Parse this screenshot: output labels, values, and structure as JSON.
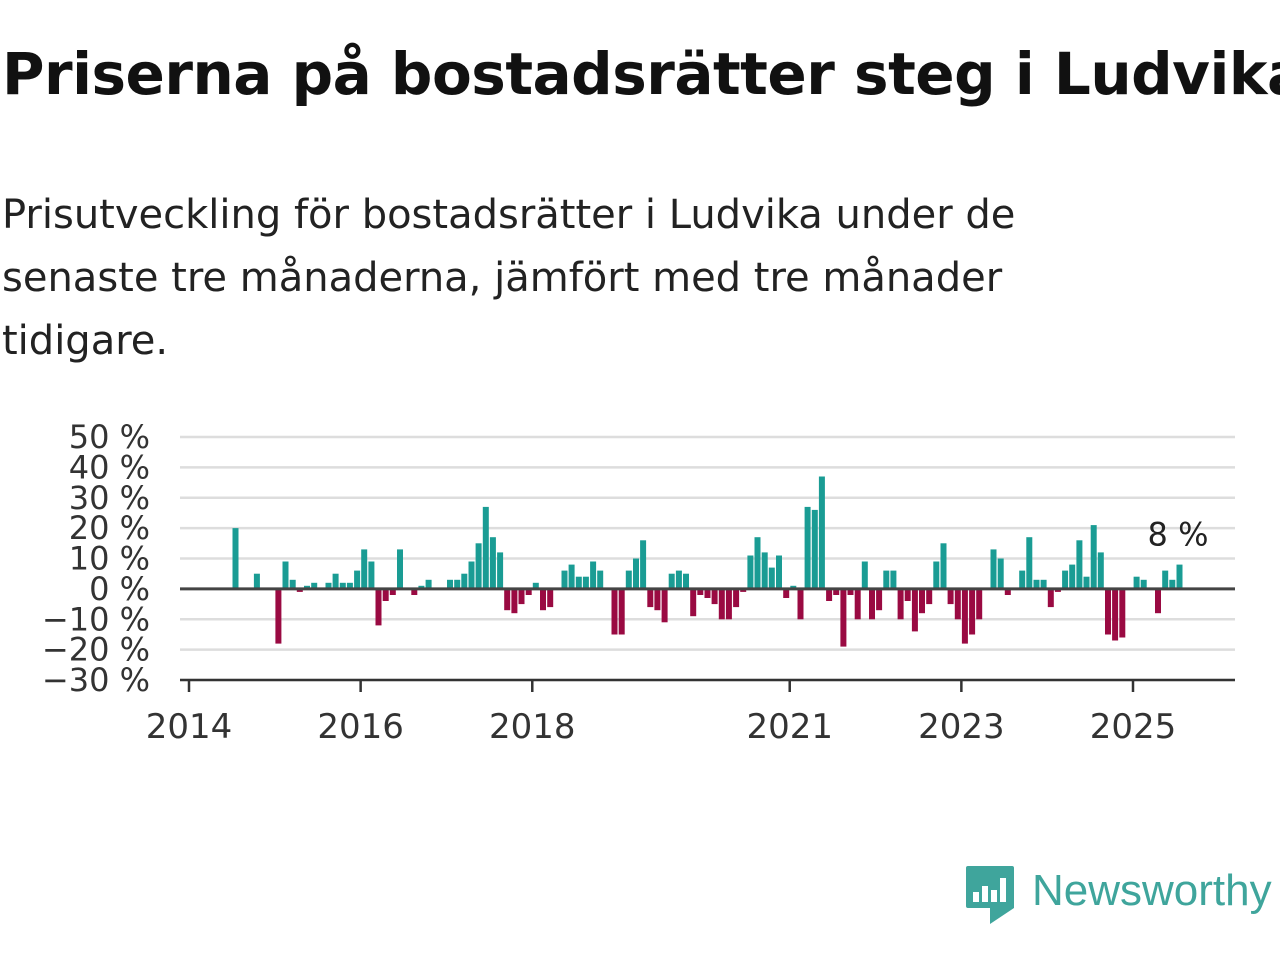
{
  "title": "Priserna på bostadsrätter steg i Ludvika",
  "subtitle": "Prisutveckling för bostadsrätter i Ludvika under de senaste tre månaderna, jämfört med tre månader tidigare.",
  "brand": {
    "name": "Newsworthy",
    "color": "#3fa59c",
    "icon": "newsworthy-logo-icon"
  },
  "colors": {
    "positive": "#1a9c94",
    "negative": "#9a0a42",
    "grid": "#dddddd",
    "axis": "#333333"
  },
  "chart_data": {
    "type": "bar",
    "title": "Priserna på bostadsrätter steg i Ludvika",
    "xlabel": "",
    "ylabel": "",
    "ylim": [
      -30,
      50
    ],
    "yticks": [
      50,
      40,
      30,
      20,
      10,
      0,
      -10,
      -20,
      -30
    ],
    "ytick_labels": [
      "50 %",
      "40 %",
      "30 %",
      "20 %",
      "10 %",
      "0 %",
      "−10 %",
      "−20 %",
      "−30 %"
    ],
    "xticks": [
      {
        "year": 2014.0,
        "label": "2014"
      },
      {
        "year": 2016.0,
        "label": "2016"
      },
      {
        "year": 2018.0,
        "label": "2018"
      },
      {
        "year": 2021.0,
        "label": "2021"
      },
      {
        "year": 2023.0,
        "label": "2023"
      },
      {
        "year": 2025.0,
        "label": "2025"
      }
    ],
    "grid": true,
    "last_value_label": "8 %",
    "series": [
      {
        "points": [
          [
            "2014-07",
            20
          ],
          [
            "2014-10",
            5
          ],
          [
            "2015-01",
            -18
          ],
          [
            "2015-02",
            9
          ],
          [
            "2015-03",
            3
          ],
          [
            "2015-04",
            -1
          ],
          [
            "2015-05",
            1
          ],
          [
            "2015-06",
            2
          ],
          [
            "2015-08",
            2
          ],
          [
            "2015-09",
            5
          ],
          [
            "2015-10",
            2
          ],
          [
            "2015-11",
            2
          ],
          [
            "2015-12",
            6
          ],
          [
            "2016-01",
            13
          ],
          [
            "2016-02",
            9
          ],
          [
            "2016-03",
            -12
          ],
          [
            "2016-04",
            -4
          ],
          [
            "2016-05",
            -2
          ],
          [
            "2016-06",
            13
          ],
          [
            "2016-08",
            -2
          ],
          [
            "2016-09",
            1
          ],
          [
            "2016-10",
            3
          ],
          [
            "2017-01",
            3
          ],
          [
            "2017-02",
            3
          ],
          [
            "2017-03",
            5
          ],
          [
            "2017-04",
            9
          ],
          [
            "2017-05",
            15
          ],
          [
            "2017-06",
            27
          ],
          [
            "2017-07",
            17
          ],
          [
            "2017-08",
            12
          ],
          [
            "2017-09",
            -7
          ],
          [
            "2017-10",
            -8
          ],
          [
            "2017-11",
            -5
          ],
          [
            "2017-12",
            -2
          ],
          [
            "2018-01",
            2
          ],
          [
            "2018-02",
            -7
          ],
          [
            "2018-03",
            -6
          ],
          [
            "2018-05",
            6
          ],
          [
            "2018-06",
            8
          ],
          [
            "2018-07",
            4
          ],
          [
            "2018-08",
            4
          ],
          [
            "2018-09",
            9
          ],
          [
            "2018-10",
            6
          ],
          [
            "2018-12",
            -15
          ],
          [
            "2019-01",
            -15
          ],
          [
            "2019-02",
            6
          ],
          [
            "2019-03",
            10
          ],
          [
            "2019-04",
            16
          ],
          [
            "2019-05",
            -6
          ],
          [
            "2019-06",
            -7
          ],
          [
            "2019-07",
            -11
          ],
          [
            "2019-08",
            5
          ],
          [
            "2019-09",
            6
          ],
          [
            "2019-10",
            5
          ],
          [
            "2019-11",
            -9
          ],
          [
            "2019-12",
            -2
          ],
          [
            "2020-01",
            -3
          ],
          [
            "2020-02",
            -5
          ],
          [
            "2020-03",
            -10
          ],
          [
            "2020-04",
            -10
          ],
          [
            "2020-05",
            -6
          ],
          [
            "2020-06",
            -1
          ],
          [
            "2020-07",
            11
          ],
          [
            "2020-08",
            17
          ],
          [
            "2020-09",
            12
          ],
          [
            "2020-10",
            7
          ],
          [
            "2020-11",
            11
          ],
          [
            "2020-12",
            -3
          ],
          [
            "2021-01",
            1
          ],
          [
            "2021-02",
            -10
          ],
          [
            "2021-03",
            27
          ],
          [
            "2021-04",
            26
          ],
          [
            "2021-05",
            37
          ],
          [
            "2021-06",
            -4
          ],
          [
            "2021-07",
            -2
          ],
          [
            "2021-08",
            -19
          ],
          [
            "2021-09",
            -2
          ],
          [
            "2021-10",
            -10
          ],
          [
            "2021-11",
            9
          ],
          [
            "2021-12",
            -10
          ],
          [
            "2022-01",
            -7
          ],
          [
            "2022-02",
            6
          ],
          [
            "2022-03",
            6
          ],
          [
            "2022-04",
            -10
          ],
          [
            "2022-05",
            -4
          ],
          [
            "2022-06",
            -14
          ],
          [
            "2022-07",
            -8
          ],
          [
            "2022-08",
            -5
          ],
          [
            "2022-09",
            9
          ],
          [
            "2022-10",
            15
          ],
          [
            "2022-11",
            -5
          ],
          [
            "2022-12",
            -10
          ],
          [
            "2023-01",
            -18
          ],
          [
            "2023-02",
            -15
          ],
          [
            "2023-03",
            -10
          ],
          [
            "2023-05",
            13
          ],
          [
            "2023-06",
            10
          ],
          [
            "2023-07",
            -2
          ],
          [
            "2023-09",
            6
          ],
          [
            "2023-10",
            17
          ],
          [
            "2023-11",
            3
          ],
          [
            "2023-12",
            3
          ],
          [
            "2024-01",
            -6
          ],
          [
            "2024-02",
            -1
          ],
          [
            "2024-03",
            6
          ],
          [
            "2024-04",
            8
          ],
          [
            "2024-05",
            16
          ],
          [
            "2024-06",
            4
          ],
          [
            "2024-07",
            21
          ],
          [
            "2024-08",
            12
          ],
          [
            "2024-09",
            -15
          ],
          [
            "2024-10",
            -17
          ],
          [
            "2024-11",
            -16
          ],
          [
            "2025-01",
            4
          ],
          [
            "2025-02",
            3
          ],
          [
            "2025-04",
            -8
          ],
          [
            "2025-05",
            6
          ],
          [
            "2025-06",
            3
          ],
          [
            "2025-07",
            8
          ]
        ]
      }
    ]
  }
}
